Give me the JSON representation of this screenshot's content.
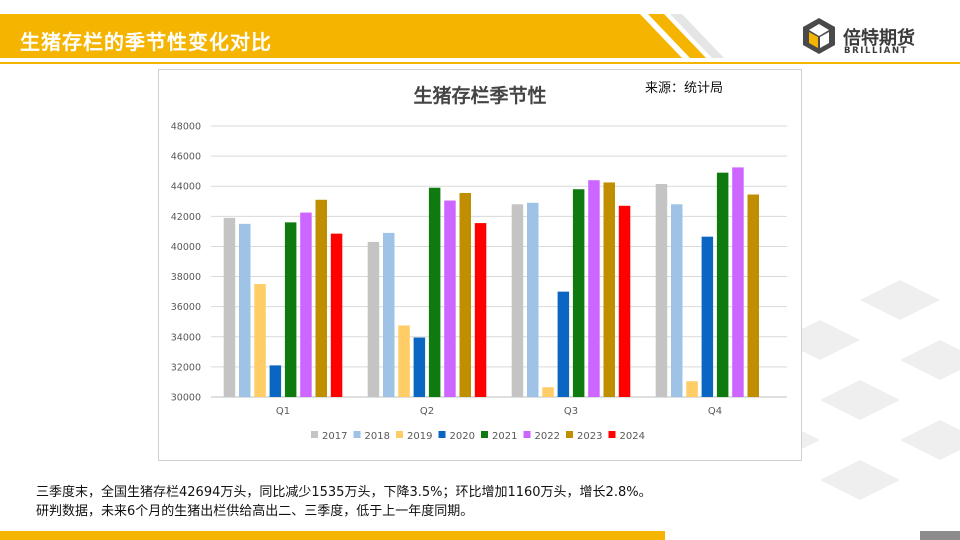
{
  "slide": {
    "title": "生猪存栏的季节性变化对比",
    "brand_name": "倍特期货",
    "brand_sub": "BRILLIANT",
    "accent_color": "#f5b400",
    "caption_line1": "三季度末，全国生猪存栏42694万头，同比减少1535万头，下降3.5%；环比增加1160万头，增长2.8%。",
    "caption_line2": "研判数据，未来6个月的生猪出栏供给高出二、三季度，低于上一年度同期。"
  },
  "chart_source": "来源：统计局",
  "chart_data": {
    "type": "bar",
    "title": "生猪存栏季节性",
    "categories": [
      "Q1",
      "Q2",
      "Q3",
      "Q4"
    ],
    "ylim": [
      30000,
      48000
    ],
    "yticks": [
      30000,
      32000,
      34000,
      36000,
      38000,
      40000,
      42000,
      44000,
      46000,
      48000
    ],
    "grid": true,
    "legend_position": "bottom",
    "series": [
      {
        "name": "2017",
        "color": "#c4c4c4",
        "values": [
          41900,
          40300,
          42800,
          44150
        ]
      },
      {
        "name": "2018",
        "color": "#9fc3e7",
        "values": [
          41500,
          40900,
          42900,
          42800
        ]
      },
      {
        "name": "2019",
        "color": "#ffcc66",
        "values": [
          37500,
          34750,
          30650,
          31050
        ]
      },
      {
        "name": "2020",
        "color": "#0b66c2",
        "values": [
          32100,
          33950,
          37000,
          40650
        ]
      },
      {
        "name": "2021",
        "color": "#0f7a0f",
        "values": [
          41600,
          43900,
          43800,
          44900
        ]
      },
      {
        "name": "2022",
        "color": "#cc66ff",
        "values": [
          42250,
          43050,
          44400,
          45250
        ]
      },
      {
        "name": "2023",
        "color": "#bf8f00",
        "values": [
          43100,
          43550,
          44250,
          43450
        ]
      },
      {
        "name": "2024",
        "color": "#ff0000",
        "values": [
          40850,
          41550,
          42700,
          null
        ]
      }
    ]
  }
}
